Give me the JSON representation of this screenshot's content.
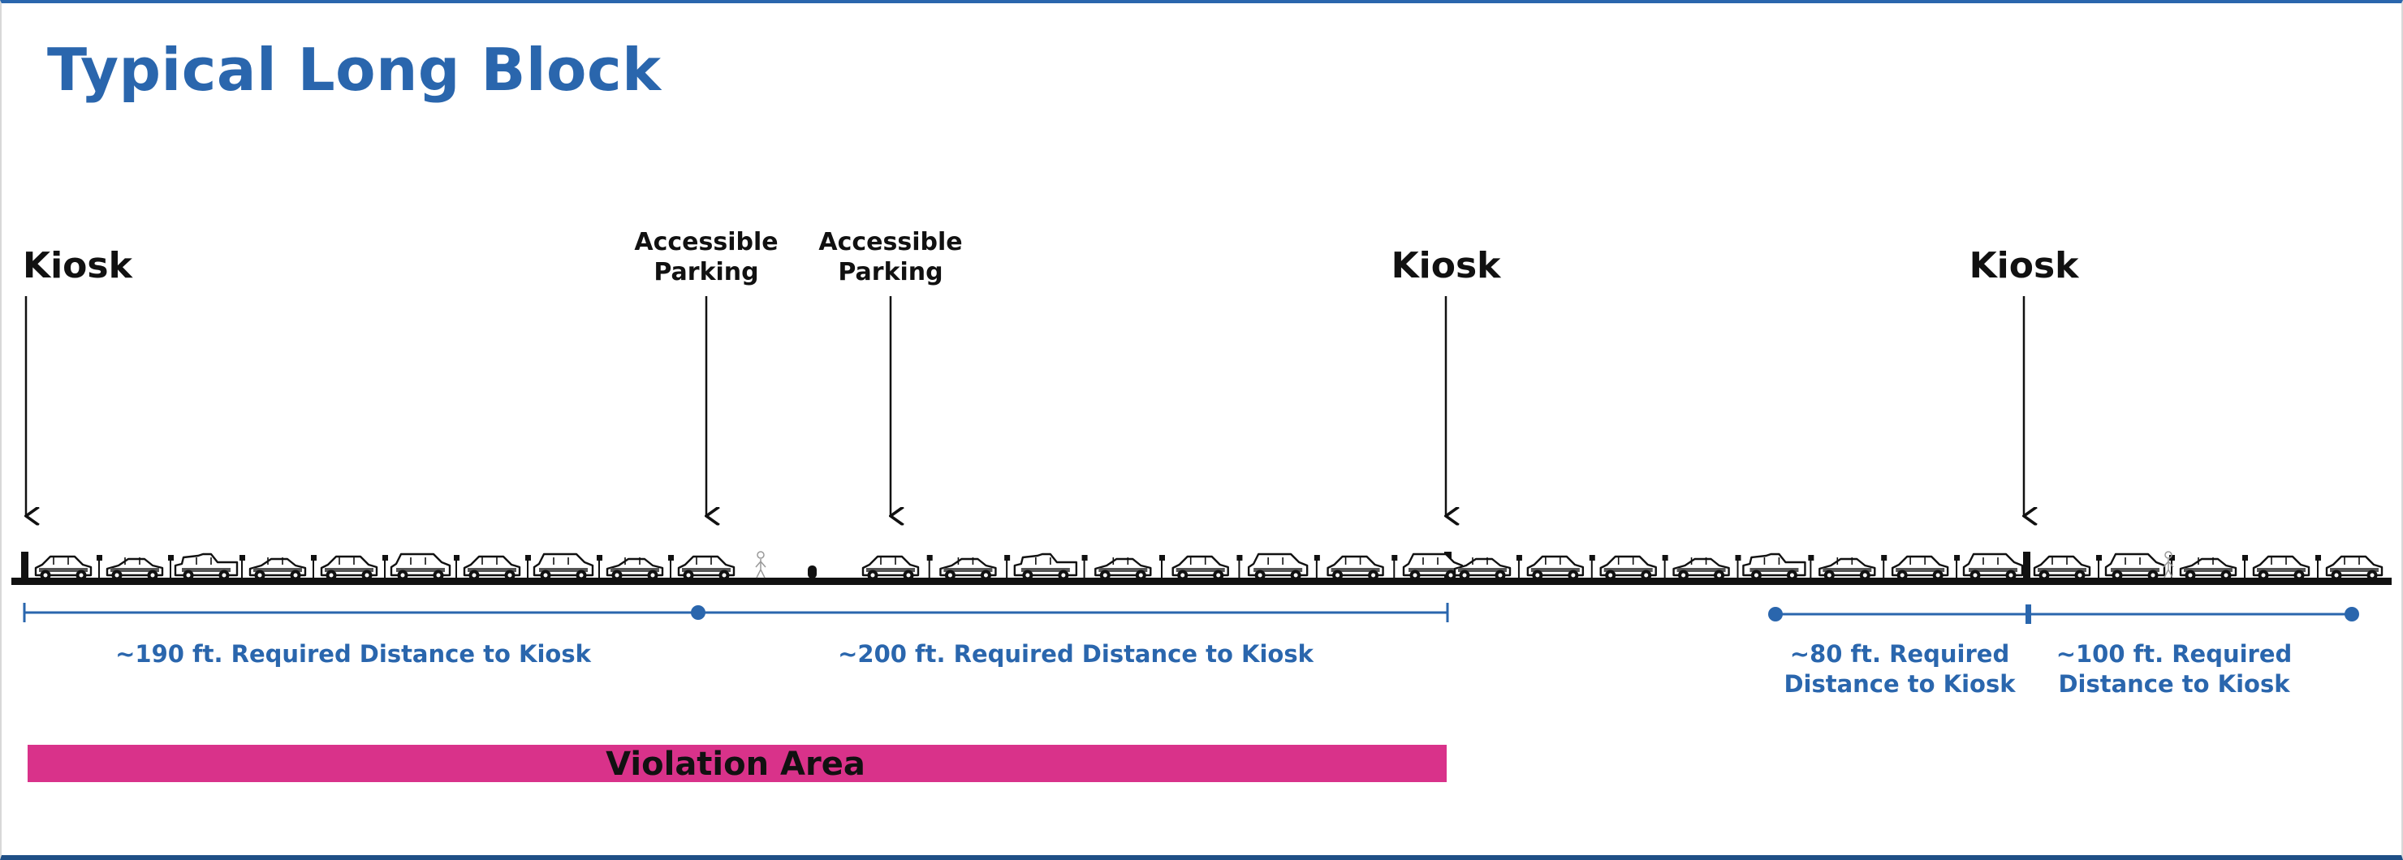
{
  "title": "Typical Long Block",
  "colors": {
    "accent_blue": "#2a66ad",
    "violation_magenta": "#d9328a",
    "ink": "#111111"
  },
  "callouts": [
    {
      "id": "kiosk-1",
      "lines": [
        "Kiosk"
      ]
    },
    {
      "id": "accessible-1",
      "lines": [
        "Accessible",
        "Parking"
      ]
    },
    {
      "id": "accessible-2",
      "lines": [
        "Accessible",
        "Parking"
      ]
    },
    {
      "id": "kiosk-2",
      "lines": [
        "Kiosk"
      ]
    },
    {
      "id": "kiosk-3",
      "lines": [
        "Kiosk"
      ]
    }
  ],
  "distances": [
    {
      "id": "dist-190",
      "lines": [
        "~190 ft. Required Distance to Kiosk"
      ]
    },
    {
      "id": "dist-200",
      "lines": [
        "~200 ft. Required Distance to Kiosk"
      ]
    },
    {
      "id": "dist-80",
      "lines": [
        "~80 ft. Required",
        "Distance to Kiosk"
      ]
    },
    {
      "id": "dist-100",
      "lines": [
        "~100 ft. Required",
        "Distance to Kiosk"
      ]
    }
  ],
  "violation_label": "Violation Area"
}
